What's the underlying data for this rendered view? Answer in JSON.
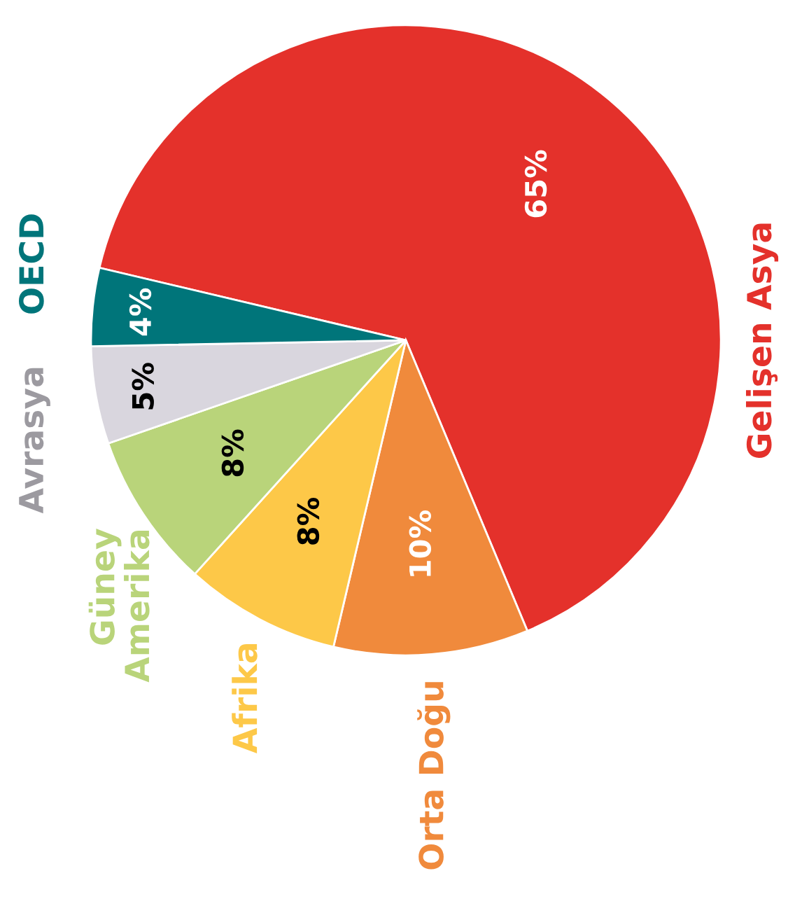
{
  "chart_data": {
    "type": "pie",
    "categories": [
      "Gelişen Asya",
      "Orta Doğu",
      "Afrika",
      "Güney\nAmerika",
      "Avrasya",
      "OECD"
    ],
    "values": [
      65,
      10,
      8,
      8,
      5,
      4
    ],
    "value_labels": [
      "65%",
      "10%",
      "8%",
      "8%",
      "5%",
      "4%"
    ],
    "colors": [
      "#e4312b",
      "#f08a3c",
      "#fdc848",
      "#b9d47a",
      "#d9d6de",
      "#00757a"
    ],
    "legend": false
  }
}
